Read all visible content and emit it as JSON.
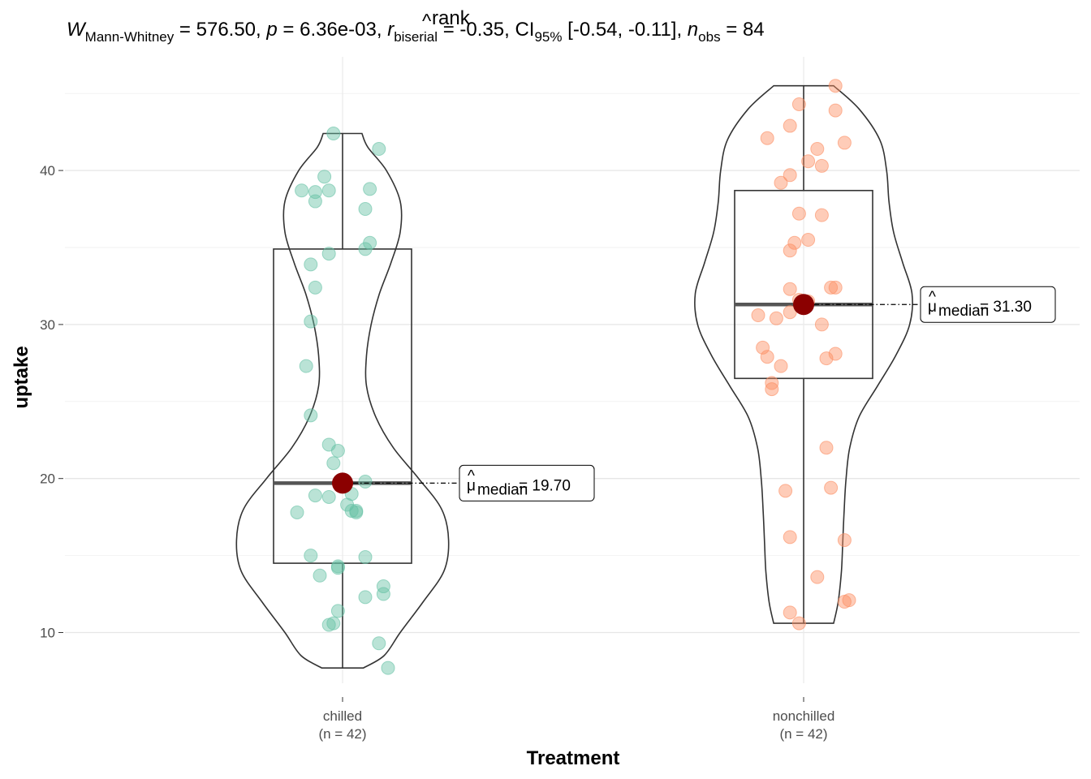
{
  "chart_data": {
    "type": "violin-box-scatter",
    "title": {
      "W_label": "Mann-Whitney",
      "W_value": "576.50",
      "p_value": "6.36e-03",
      "r_sup": "rank",
      "r_sub": "biserial",
      "r_value": "-0.35",
      "ci_sub": "95%",
      "ci_value": "[-0.54, -0.11]",
      "n_sub": "obs",
      "n_value": "84"
    },
    "xlabel": "Treatment",
    "ylabel": "uptake",
    "ylim": [
      6.5,
      47
    ],
    "yticks": [
      10,
      20,
      30,
      40
    ],
    "grid": true,
    "groups": [
      {
        "name": "chilled",
        "n_label": "(n = 42)",
        "color": "#66c2a5",
        "median": 19.7,
        "q1": 14.5,
        "q3": 34.9,
        "min": 7.7,
        "max": 42.4,
        "median_label": "19.70",
        "violin_widths": [
          [
            7.7,
            0.45
          ],
          [
            8.5,
            0.9
          ],
          [
            10,
            1.25
          ],
          [
            12,
            1.75
          ],
          [
            14,
            2.2
          ],
          [
            16,
            2.3
          ],
          [
            18,
            2.15
          ],
          [
            20,
            1.65
          ],
          [
            22,
            1.1
          ],
          [
            24,
            0.72
          ],
          [
            26,
            0.52
          ],
          [
            28,
            0.52
          ],
          [
            30,
            0.62
          ],
          [
            32,
            0.8
          ],
          [
            34,
            1.05
          ],
          [
            36,
            1.25
          ],
          [
            38,
            1.25
          ],
          [
            40,
            0.95
          ],
          [
            41.5,
            0.55
          ],
          [
            42.4,
            0.42
          ]
        ],
        "points": [
          [
            -0.02,
            42.4
          ],
          [
            0.08,
            41.4
          ],
          [
            0.06,
            38.8
          ],
          [
            0.05,
            37.5
          ],
          [
            0.06,
            35.3
          ],
          [
            0.05,
            34.9
          ],
          [
            -0.04,
            39.6
          ],
          [
            -0.06,
            38.6
          ],
          [
            -0.09,
            38.7
          ],
          [
            -0.06,
            38.0
          ],
          [
            -0.03,
            38.7
          ],
          [
            -0.03,
            34.6
          ],
          [
            -0.07,
            33.9
          ],
          [
            -0.06,
            32.4
          ],
          [
            -0.07,
            30.2
          ],
          [
            -0.08,
            27.3
          ],
          [
            -0.07,
            24.1
          ],
          [
            -0.03,
            22.2
          ],
          [
            -0.02,
            21.0
          ],
          [
            -0.06,
            18.9
          ],
          [
            -0.1,
            17.8
          ],
          [
            -0.03,
            18.8
          ],
          [
            0.05,
            19.8
          ],
          [
            -0.01,
            21.8
          ],
          [
            0.02,
            19.0
          ],
          [
            0.01,
            18.3
          ],
          [
            0.02,
            17.9
          ],
          [
            0.03,
            17.8
          ],
          [
            0.03,
            17.9
          ],
          [
            -0.07,
            15.0
          ],
          [
            -0.01,
            14.3
          ],
          [
            -0.01,
            14.2
          ],
          [
            0.05,
            14.9
          ],
          [
            -0.05,
            13.7
          ],
          [
            0.09,
            13.0
          ],
          [
            0.09,
            12.5
          ],
          [
            0.05,
            12.3
          ],
          [
            -0.01,
            11.4
          ],
          [
            -0.02,
            10.6
          ],
          [
            -0.03,
            10.5
          ],
          [
            0.08,
            9.3
          ],
          [
            0.1,
            7.7
          ]
        ]
      },
      {
        "name": "nonchilled",
        "n_label": "(n = 42)",
        "color": "#fc8d62",
        "median": 31.3,
        "q1": 26.5,
        "q3": 38.7,
        "min": 10.6,
        "max": 45.5,
        "median_label": "31.30",
        "violin_widths": [
          [
            10.6,
            0.65
          ],
          [
            12,
            0.75
          ],
          [
            14,
            0.82
          ],
          [
            16,
            0.85
          ],
          [
            18,
            0.88
          ],
          [
            20,
            0.92
          ],
          [
            22,
            1.0
          ],
          [
            24,
            1.2
          ],
          [
            26,
            1.6
          ],
          [
            28,
            2.0
          ],
          [
            30,
            2.3
          ],
          [
            32,
            2.35
          ],
          [
            34,
            2.15
          ],
          [
            36,
            1.95
          ],
          [
            38,
            1.85
          ],
          [
            40,
            1.8
          ],
          [
            42,
            1.65
          ],
          [
            44,
            1.2
          ],
          [
            45.5,
            0.65
          ]
        ],
        "points": [
          [
            0.07,
            45.5
          ],
          [
            0.07,
            43.9
          ],
          [
            -0.01,
            44.3
          ],
          [
            -0.03,
            42.9
          ],
          [
            -0.08,
            42.1
          ],
          [
            0.09,
            41.8
          ],
          [
            0.03,
            41.4
          ],
          [
            0.01,
            40.6
          ],
          [
            0.04,
            40.3
          ],
          [
            -0.03,
            39.7
          ],
          [
            -0.05,
            39.2
          ],
          [
            -0.01,
            37.2
          ],
          [
            0.04,
            37.1
          ],
          [
            -0.02,
            35.3
          ],
          [
            0.01,
            35.5
          ],
          [
            -0.03,
            34.8
          ],
          [
            0.07,
            32.4
          ],
          [
            0.06,
            32.4
          ],
          [
            -0.03,
            32.3
          ],
          [
            -0.01,
            31.6
          ],
          [
            0.01,
            31.5
          ],
          [
            -0.03,
            30.8
          ],
          [
            -0.1,
            30.6
          ],
          [
            -0.06,
            30.4
          ],
          [
            0.04,
            30.0
          ],
          [
            -0.09,
            28.5
          ],
          [
            -0.08,
            27.9
          ],
          [
            0.07,
            28.1
          ],
          [
            0.05,
            27.8
          ],
          [
            -0.05,
            27.3
          ],
          [
            -0.07,
            26.2
          ],
          [
            -0.07,
            25.8
          ],
          [
            0.05,
            22.0
          ],
          [
            -0.04,
            19.2
          ],
          [
            0.06,
            19.4
          ],
          [
            -0.03,
            16.2
          ],
          [
            0.09,
            16.0
          ],
          [
            0.03,
            13.6
          ],
          [
            -0.03,
            11.3
          ],
          [
            0.1,
            12.1
          ],
          [
            0.09,
            12.0
          ],
          [
            -0.01,
            10.6
          ]
        ]
      }
    ]
  }
}
